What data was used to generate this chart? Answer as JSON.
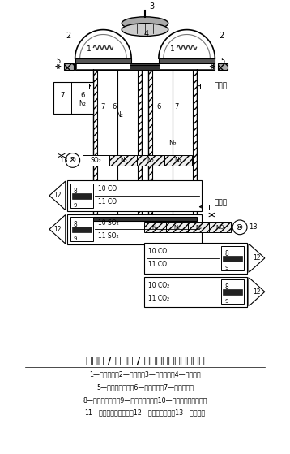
{
  "title": "双光源 / 双光程 / 四检测器带标定池配置",
  "legend_lines": [
    "1—光源灯丝；2—反光镜；3—切片马达；4—切光轮；",
    "5—光路调整旋钮；6—参比气室；7—测量气室；",
    "8—薄膜电容动片；9—薄膜电容定片；10—检测器前接收气室；",
    "11—检测器后接收气室；12—前置放大电路；13—标定气室"
  ],
  "bg_color": "#ffffff"
}
